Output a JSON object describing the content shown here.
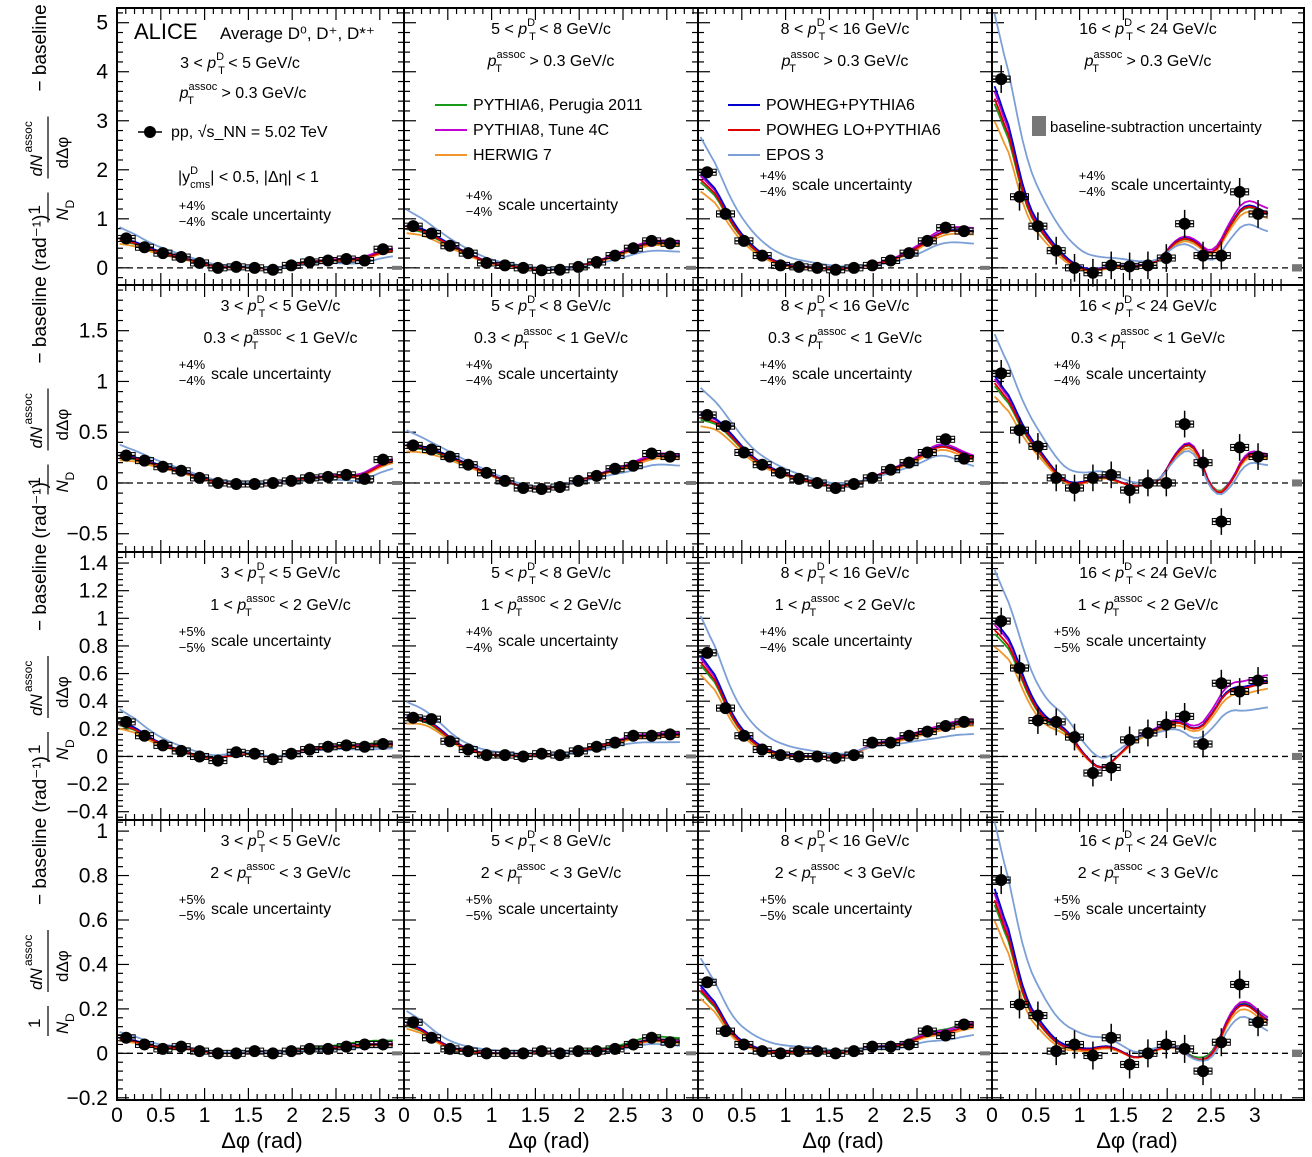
{
  "figure": {
    "experiment": "ALICE",
    "title": "Average D⁰, D⁺, D*⁺",
    "kinematics": [
      "|y",
      "D",
      "cms",
      "| < 0.5, |Δη| < 1"
    ],
    "ylabel": "1/N_D dN^assoc/dΔφ − baseline (rad⁻¹)",
    "xlabel": "Δφ (rad)",
    "legend": {
      "data": "pp, √s_NN = 5.02 TeV",
      "models": [
        {
          "name": "PYTHIA6, Perugia 2011",
          "color": "#1a9a1a"
        },
        {
          "name": "PYTHIA8, Tune 4C",
          "color": "#c400d0"
        },
        {
          "name": "HERWIG 7",
          "color": "#f0962a"
        },
        {
          "name": "POWHEG+PYTHIA6",
          "color": "#0000cc"
        },
        {
          "name": "POWHEG LO+PYTHIA6",
          "color": "#e00000"
        },
        {
          "name": "EPOS 3",
          "color": "#7b9fd6"
        }
      ],
      "baseline_box": "baseline-subtraction uncertainty"
    }
  },
  "chart_data": {
    "type": "scatter",
    "x": [
      0.105,
      0.314,
      0.524,
      0.733,
      0.942,
      1.152,
      1.361,
      1.571,
      1.78,
      1.99,
      2.199,
      2.409,
      2.618,
      2.827,
      3.037
    ],
    "xlim": [
      0,
      3.3
    ],
    "xticks": [
      0,
      0.5,
      1,
      1.5,
      2,
      2.5,
      3
    ],
    "x_tick_labels": [
      "0",
      "0.5",
      "1",
      "1.5",
      "2",
      "2.5",
      "3"
    ],
    "columns": [
      {
        "pt_d": "3 < p_T^D < 5 GeV/c"
      },
      {
        "pt_d": "5 < p_T^D < 8 GeV/c"
      },
      {
        "pt_d": "8 < p_T^D < 16 GeV/c"
      },
      {
        "pt_d": "16 < p_T^D < 24 GeV/c"
      }
    ],
    "rows": [
      {
        "assoc": "p_T^assoc > 0.3 GeV/c",
        "ylim": [
          -0.35,
          5.3
        ],
        "yticks": [
          0,
          1,
          2,
          3,
          4,
          5
        ],
        "y_tick_labels": [
          "0",
          "1",
          "2",
          "3",
          "4",
          "5"
        ],
        "panels": [
          {
            "scale": "±4% scale uncertainty",
            "values": [
              0.6,
              0.42,
              0.3,
              0.22,
              0.1,
              0.0,
              0.02,
              0.0,
              -0.04,
              0.05,
              0.12,
              0.15,
              0.18,
              0.15,
              0.38
            ]
          },
          {
            "scale": "±4% scale uncertainty",
            "values": [
              0.85,
              0.7,
              0.45,
              0.3,
              0.1,
              0.05,
              0.0,
              -0.05,
              -0.04,
              0.02,
              0.12,
              0.25,
              0.4,
              0.55,
              0.5
            ]
          },
          {
            "scale": "±4% scale uncertainty",
            "values": [
              1.95,
              1.1,
              0.55,
              0.25,
              0.05,
              0.02,
              0.0,
              -0.04,
              0.0,
              0.05,
              0.15,
              0.3,
              0.55,
              0.82,
              0.75
            ]
          },
          {
            "scale": "±4% scale uncertainty",
            "values": [
              3.85,
              1.45,
              0.85,
              0.35,
              0.0,
              -0.1,
              0.05,
              0.03,
              0.05,
              0.2,
              0.9,
              0.25,
              0.25,
              1.55,
              1.1
            ]
          }
        ]
      },
      {
        "assoc": "0.3 < p_T^assoc < 1 GeV/c",
        "ylim": [
          -0.68,
          1.95
        ],
        "yticks": [
          -0.5,
          0,
          0.5,
          1,
          1.5
        ],
        "y_tick_labels": [
          "−0.5",
          "0",
          "0.5",
          "1",
          "1.5"
        ],
        "panels": [
          {
            "scale": "±4% scale uncertainty",
            "values": [
              0.27,
              0.22,
              0.16,
              0.12,
              0.05,
              0.0,
              -0.01,
              -0.01,
              0.0,
              0.02,
              0.05,
              0.06,
              0.08,
              0.04,
              0.23
            ]
          },
          {
            "scale": "±4% scale uncertainty",
            "values": [
              0.37,
              0.33,
              0.26,
              0.18,
              0.1,
              0.02,
              -0.05,
              -0.06,
              -0.04,
              0.02,
              0.07,
              0.14,
              0.17,
              0.29,
              0.26
            ]
          },
          {
            "scale": "±4% scale uncertainty",
            "values": [
              0.67,
              0.56,
              0.3,
              0.18,
              0.1,
              0.04,
              0.0,
              -0.05,
              -0.01,
              0.05,
              0.13,
              0.2,
              0.3,
              0.43,
              0.24
            ]
          },
          {
            "scale": "±4% scale uncertainty",
            "values": [
              1.08,
              0.52,
              0.36,
              0.05,
              -0.05,
              0.05,
              0.08,
              -0.07,
              0.0,
              0.0,
              0.58,
              0.2,
              -0.38,
              0.35,
              0.26
            ]
          }
        ]
      },
      {
        "assoc": "1 < p_T^assoc < 2 GeV/c",
        "ylim": [
          -0.46,
          1.48
        ],
        "yticks": [
          -0.4,
          -0.2,
          0,
          0.2,
          0.4,
          0.6,
          0.8,
          1,
          1.2,
          1.4
        ],
        "y_tick_labels": [
          "−0.4",
          "−0.2",
          "0",
          "0.2",
          "0.4",
          "0.6",
          "0.8",
          "1",
          "1.2",
          "1.4"
        ],
        "panels": [
          {
            "scale": "±5% scale uncertainty",
            "values": [
              0.25,
              0.15,
              0.08,
              0.04,
              0.0,
              -0.03,
              0.03,
              0.02,
              -0.02,
              0.02,
              0.05,
              0.07,
              0.08,
              0.07,
              0.09
            ]
          },
          {
            "scale": "±4% scale uncertainty",
            "values": [
              0.28,
              0.27,
              0.11,
              0.05,
              0.01,
              0.01,
              0.0,
              0.02,
              0.01,
              0.04,
              0.07,
              0.1,
              0.15,
              0.15,
              0.16
            ]
          },
          {
            "scale": "±4% scale uncertainty",
            "values": [
              0.75,
              0.35,
              0.15,
              0.05,
              0.01,
              0.0,
              0.0,
              -0.01,
              0.01,
              0.1,
              0.1,
              0.15,
              0.18,
              0.22,
              0.25
            ]
          },
          {
            "scale": "±5% scale uncertainty",
            "values": [
              0.98,
              0.64,
              0.26,
              0.25,
              0.14,
              -0.12,
              -0.08,
              0.12,
              0.17,
              0.23,
              0.29,
              0.09,
              0.53,
              0.47,
              0.55
            ]
          }
        ]
      },
      {
        "assoc": "2 < p_T^assoc < 3 GeV/c",
        "ylim": [
          -0.21,
          1.05
        ],
        "yticks": [
          -0.2,
          0,
          0.2,
          0.4,
          0.6,
          0.8,
          1
        ],
        "y_tick_labels": [
          "−0.2",
          "0",
          "0.2",
          "0.4",
          "0.6",
          "0.8",
          "1"
        ],
        "panels": [
          {
            "scale": "±5% scale uncertainty",
            "values": [
              0.07,
              0.04,
              0.02,
              0.03,
              0.01,
              0.0,
              0.0,
              0.01,
              0.0,
              0.01,
              0.02,
              0.02,
              0.03,
              0.04,
              0.04
            ]
          },
          {
            "scale": "±5% scale uncertainty",
            "values": [
              0.14,
              0.07,
              0.02,
              0.01,
              0.0,
              0.0,
              0.0,
              0.01,
              0.0,
              0.01,
              0.01,
              0.02,
              0.04,
              0.07,
              0.05
            ]
          },
          {
            "scale": "±5% scale uncertainty",
            "values": [
              0.32,
              0.1,
              0.04,
              0.01,
              0.0,
              0.01,
              0.01,
              0.0,
              0.01,
              0.03,
              0.03,
              0.04,
              0.1,
              0.08,
              0.13
            ]
          },
          {
            "scale": "±5% scale uncertainty",
            "values": [
              0.78,
              0.22,
              0.17,
              0.01,
              0.04,
              -0.01,
              0.07,
              -0.05,
              0.0,
              0.04,
              0.02,
              -0.08,
              0.05,
              0.31,
              0.14
            ]
          }
        ]
      }
    ]
  }
}
